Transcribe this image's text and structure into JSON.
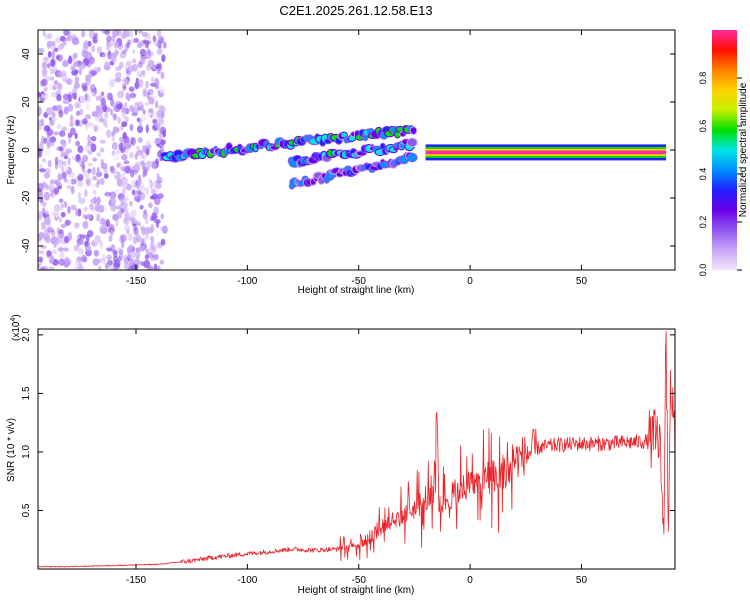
{
  "figure": {
    "title": "C2E1.2025.261.12.58.E13"
  },
  "colors": {
    "snr_line": "#e8242a",
    "axis": "#000000",
    "background": "#ffffff",
    "colormap": [
      "#f2e6fb",
      "#c8a6f5",
      "#8f55ee",
      "#6a00e6",
      "#2020ff",
      "#0090ff",
      "#00e6e6",
      "#00e000",
      "#c8f000",
      "#ffd000",
      "#ff8000",
      "#ff1000",
      "#ff2aa0"
    ]
  },
  "chart_data": [
    {
      "type": "heatmap",
      "xlabel": "Height of straight line (km)",
      "ylabel": "Frequency (Hz)",
      "xlim": [
        -194,
        92
      ],
      "ylim": [
        -50,
        50
      ],
      "xticks": [
        -150,
        -100,
        -50,
        0,
        50
      ],
      "yticks": [
        -40,
        -20,
        0,
        20,
        40
      ],
      "xtick_labels": [
        "-150",
        "-100",
        "-50",
        "0",
        "50"
      ],
      "ytick_labels": [
        "-40",
        "-20",
        "0",
        "20",
        "40"
      ],
      "colorbar": {
        "label": "Normalized spectral amplitude",
        "range": [
          0,
          1
        ],
        "ticks": [
          0,
          0.2,
          0.4,
          0.6,
          0.8
        ],
        "tick_labels": [
          "0.0",
          "0.2",
          "0.4",
          "0.6",
          "0.8"
        ]
      },
      "features": [
        {
          "description": "noise",
          "x_range": [
            -194,
            -137
          ],
          "freq_range": [
            -50,
            50
          ],
          "amplitude": 0.12
        },
        {
          "description": "band",
          "x": [
            -137,
            -120,
            -100,
            -80,
            -60,
            -40,
            -25
          ],
          "freq": [
            -3,
            -1,
            1,
            3,
            5,
            7,
            8
          ],
          "amplitude": 0.45
        },
        {
          "description": "band",
          "x": [
            -80,
            -65,
            -50,
            -35,
            -25
          ],
          "freq": [
            -5,
            -3,
            -1,
            1,
            3
          ],
          "amplitude": 0.4
        },
        {
          "description": "band",
          "x": [
            -80,
            -65,
            -50,
            -35,
            -25
          ],
          "freq": [
            -14,
            -11,
            -8,
            -5,
            -2
          ],
          "amplitude": 0.3
        },
        {
          "description": "carrier",
          "x_range": [
            -20,
            88
          ],
          "freq": -1,
          "amplitude": 0.97
        }
      ]
    },
    {
      "type": "line",
      "xlabel": "Height of straight line (km)",
      "ylabel": "SNR (10 * v/v)",
      "y_multiplier": "(x10",
      "y_multiplier_exp": "4",
      "xlim": [
        -194,
        92
      ],
      "ylim": [
        0,
        2.05
      ],
      "xticks": [
        -150,
        -100,
        -50,
        0,
        50
      ],
      "yticks": [
        0.5,
        1.0,
        1.5,
        2.0
      ],
      "xtick_labels": [
        "-150",
        "-100",
        "-50",
        "0",
        "50"
      ],
      "ytick_labels": [
        "0.5",
        "1.0",
        "1.5",
        "2.0"
      ],
      "series": [
        {
          "x": [
            -194,
            -180,
            -160,
            -140,
            -125,
            -115,
            -100,
            -90,
            -80,
            -70,
            -60,
            -50,
            -45,
            -40,
            -35,
            -30,
            -25,
            -20,
            -16,
            -15,
            -14,
            -10,
            -5,
            0,
            5,
            10,
            15,
            20,
            25,
            30,
            35,
            40,
            50,
            60,
            70,
            80,
            85,
            87,
            88,
            89,
            90,
            92
          ],
          "y": [
            0.02,
            0.02,
            0.03,
            0.04,
            0.07,
            0.1,
            0.13,
            0.15,
            0.17,
            0.16,
            0.17,
            0.22,
            0.28,
            0.35,
            0.42,
            0.45,
            0.52,
            0.58,
            0.62,
            1.34,
            0.55,
            0.6,
            0.68,
            0.72,
            0.75,
            0.78,
            0.85,
            0.93,
            0.98,
            1.03,
            1.05,
            1.06,
            1.07,
            1.07,
            1.08,
            1.09,
            1.12,
            0.3,
            2.03,
            0.32,
            1.7,
            1.0
          ]
        }
      ]
    }
  ]
}
